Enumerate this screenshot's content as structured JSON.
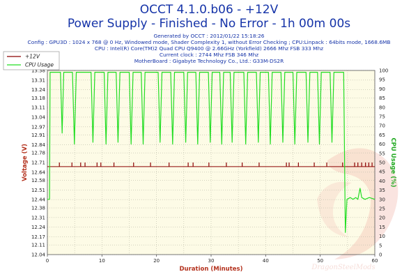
{
  "header": {
    "title_line1": "OCCT 4.1.0.b06 - +12V",
    "title_line2": "Power Supply - Finished - No Error - 1h 00m 00s",
    "info_lines": [
      "Generated by OCCT : 2012/01/22 15:18:26",
      "Config : GPU3D : 1024 x 768 @ 0 Hz, Windowed mode, Shader Complexity 1, without Error Checking ; CPU:Linpack : 64bits mode, 1668.6MB",
      "CPU : Intel(R) Core(TM)2 Quad CPU Q9400 @ 2.66GHz (Yorkfield) 2666 Mhz FSB 333 Mhz",
      "Current clock : 2744 Mhz FSB 346 Mhz",
      "MotherBoard : Gigabyte Technology Co., Ltd.: G33M-DS2R"
    ]
  },
  "watermark": "DragonSteelMods",
  "colors": {
    "title": "#1533a8",
    "plot_bg": "#fdfbe6",
    "grid": "#b9b9a6",
    "voltage_line": "#8b0000",
    "cpu_line": "#22dd22",
    "axis_title": "#b4321e",
    "cpu_axis_title": "#22aa22"
  },
  "chart_data": {
    "type": "line",
    "xlabel": "Duration (Minutes)",
    "ylabel": "Voltage (V)",
    "ylabel_right": "CPU Usage (%)",
    "xlim": [
      0,
      60
    ],
    "ylim": [
      12.04,
      13.38
    ],
    "ylim_right": [
      0,
      100
    ],
    "x_ticks": [
      0,
      10,
      20,
      30,
      40,
      50,
      60
    ],
    "y_ticks": [
      "13.38",
      "13.31",
      "13.24",
      "13.18",
      "13.11",
      "13.04",
      "12.97",
      "12.91",
      "12.84",
      "12.78",
      "12.71",
      "12.64",
      "12.58",
      "12.51",
      "12.44",
      "12.38",
      "12.31",
      "12.24",
      "12.17",
      "12.11",
      "12.04"
    ],
    "y_ticks_right": [
      0,
      5,
      10,
      15,
      20,
      25,
      30,
      35,
      40,
      45,
      50,
      55,
      60,
      65,
      70,
      75,
      80,
      85,
      90,
      95,
      100
    ],
    "legend": [
      "+12V",
      "CPU Usage"
    ],
    "legend_position": "top-left",
    "grid": true,
    "series": [
      {
        "name": "+12V",
        "axis": "left",
        "base_value": 12.68,
        "spike_value": 12.71,
        "spike_x": [
          2.2,
          4.5,
          6.1,
          6.9,
          9.1,
          9.8,
          12.2,
          15.8,
          18.9,
          22.3,
          25.8,
          26.7,
          29.6,
          32.8,
          35.7,
          38.8,
          43.8,
          44.3,
          46.0,
          48.9,
          51.2,
          54.1,
          56.3,
          56.9,
          57.6,
          58.3,
          58.9,
          59.5
        ]
      },
      {
        "name": "CPU Usage",
        "axis": "right",
        "points": [
          [
            0,
            30
          ],
          [
            0.4,
            30
          ],
          [
            0.5,
            99
          ],
          [
            2.4,
            99
          ],
          [
            2.7,
            66
          ],
          [
            3.0,
            99
          ],
          [
            4.6,
            99
          ],
          [
            4.95,
            60
          ],
          [
            5.3,
            99
          ],
          [
            8.0,
            99
          ],
          [
            8.35,
            61
          ],
          [
            8.7,
            99
          ],
          [
            10.4,
            99
          ],
          [
            10.75,
            60
          ],
          [
            11.1,
            99
          ],
          [
            12.6,
            99
          ],
          [
            12.95,
            61
          ],
          [
            13.3,
            99
          ],
          [
            15.0,
            99
          ],
          [
            15.35,
            60
          ],
          [
            15.7,
            99
          ],
          [
            17.2,
            99
          ],
          [
            17.55,
            60
          ],
          [
            17.9,
            99
          ],
          [
            20.3,
            99
          ],
          [
            20.65,
            61
          ],
          [
            21.0,
            99
          ],
          [
            22.6,
            99
          ],
          [
            22.95,
            60
          ],
          [
            23.3,
            99
          ],
          [
            25.0,
            99
          ],
          [
            25.35,
            61
          ],
          [
            25.7,
            99
          ],
          [
            27.2,
            99
          ],
          [
            27.55,
            60
          ],
          [
            27.9,
            99
          ],
          [
            29.5,
            99
          ],
          [
            29.85,
            61
          ],
          [
            30.2,
            99
          ],
          [
            31.6,
            99
          ],
          [
            31.95,
            60
          ],
          [
            32.3,
            99
          ],
          [
            33.5,
            99
          ],
          [
            33.85,
            61
          ],
          [
            34.2,
            99
          ],
          [
            36.0,
            99
          ],
          [
            36.35,
            60
          ],
          [
            36.7,
            99
          ],
          [
            38.3,
            99
          ],
          [
            38.65,
            61
          ],
          [
            39.0,
            99
          ],
          [
            40.5,
            99
          ],
          [
            40.85,
            60
          ],
          [
            41.2,
            99
          ],
          [
            42.8,
            99
          ],
          [
            43.15,
            61
          ],
          [
            43.5,
            99
          ],
          [
            45.0,
            99
          ],
          [
            45.35,
            60
          ],
          [
            45.7,
            99
          ],
          [
            47.4,
            99
          ],
          [
            47.75,
            61
          ],
          [
            48.1,
            99
          ],
          [
            49.5,
            99
          ],
          [
            49.85,
            60
          ],
          [
            50.2,
            99
          ],
          [
            51.8,
            99
          ],
          [
            52.15,
            61
          ],
          [
            52.5,
            99
          ],
          [
            54.3,
            99
          ],
          [
            54.6,
            12
          ],
          [
            54.9,
            30
          ],
          [
            55.5,
            31
          ],
          [
            56.0,
            30
          ],
          [
            56.5,
            31
          ],
          [
            56.9,
            30
          ],
          [
            57.3,
            36
          ],
          [
            57.6,
            31
          ],
          [
            58.2,
            30
          ],
          [
            59.0,
            31
          ],
          [
            60,
            30
          ]
        ]
      }
    ]
  }
}
